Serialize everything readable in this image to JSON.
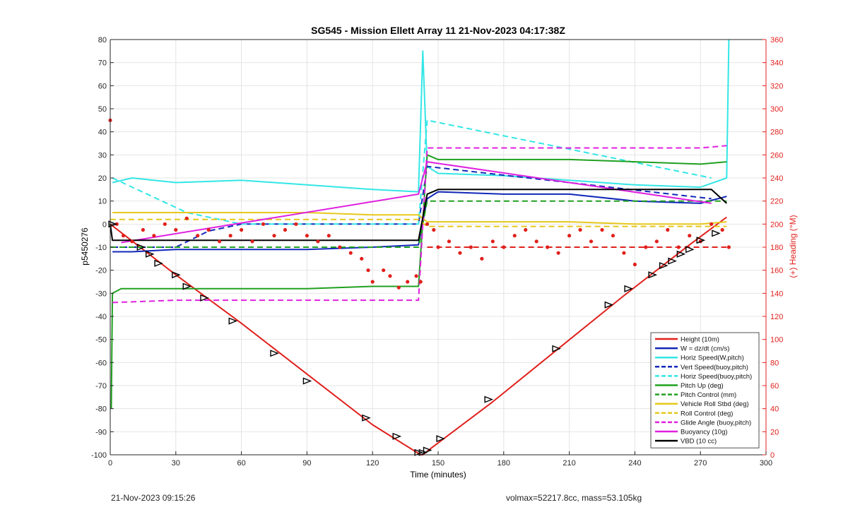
{
  "chart_data": {
    "type": "line",
    "title": "SG545 - Mission Ellett Array 11 21-Nov-2023 04:17:38Z",
    "xlabel": "Time (minutes)",
    "ylabel": "p5450276",
    "y2label": "(+) Heading (°M)",
    "xlim": [
      0,
      300
    ],
    "ylim": [
      -100,
      80
    ],
    "y2lim": [
      0,
      360
    ],
    "xticks": [
      0,
      30,
      60,
      90,
      120,
      150,
      180,
      210,
      240,
      270,
      300
    ],
    "yticks": [
      -100,
      -90,
      -80,
      -70,
      -60,
      -50,
      -40,
      -30,
      -20,
      -10,
      0,
      10,
      20,
      30,
      40,
      50,
      60,
      70,
      80
    ],
    "y2ticks": [
      0,
      20,
      40,
      60,
      80,
      100,
      120,
      140,
      160,
      180,
      200,
      220,
      240,
      260,
      280,
      300,
      320,
      340,
      360
    ],
    "grid": true,
    "legend_position": "bottom-right",
    "colors": {
      "red": "#e0201c",
      "blue": "#1228b8",
      "cyan": "#33e6e6",
      "green": "#20a020",
      "yellow": "#e6c81e",
      "magenta": "#e020e0",
      "black": "#000000",
      "axis_right": "#e0201c"
    },
    "series": [
      {
        "name": "Height (10m)",
        "color": "#e0201c",
        "style": "solid",
        "x": [
          0,
          30,
          60,
          90,
          120,
          142,
          143,
          147,
          175,
          205,
          235,
          265,
          282
        ],
        "y": [
          0,
          -22,
          -43,
          -65,
          -87,
          -100,
          -100,
          -97,
          -77,
          -54,
          -31,
          -9,
          3
        ]
      },
      {
        "name": "W = dz/dt (cm/s)",
        "color": "#1228b8",
        "style": "solid",
        "x": [
          1,
          10,
          30,
          60,
          90,
          120,
          141,
          145,
          150,
          180,
          210,
          240,
          270,
          282
        ],
        "y": [
          -12,
          -12,
          -11,
          -11,
          -11,
          -10,
          -9,
          11,
          14,
          13,
          13,
          10,
          9,
          12
        ]
      },
      {
        "name": "Horiz Speed(W,pitch)",
        "color": "#33e6e6",
        "style": "solid",
        "x": [
          1,
          10,
          30,
          60,
          90,
          120,
          141,
          143,
          145,
          150,
          180,
          210,
          240,
          270,
          282,
          283
        ],
        "y": [
          18,
          20,
          18,
          19,
          17,
          15,
          14,
          75,
          25,
          22,
          21,
          19,
          17,
          16,
          20,
          80
        ]
      },
      {
        "name": "Vert Speed(buoy,pitch)",
        "color": "#1228b8",
        "style": "dashed",
        "x": [
          1,
          30,
          45,
          60,
          141,
          145,
          275
        ],
        "y": [
          -10,
          -10,
          -3,
          0,
          0,
          25,
          11
        ]
      },
      {
        "name": "Horiz Speed(buoy,pitch)",
        "color": "#33e6e6",
        "style": "dashed",
        "x": [
          1,
          35,
          60,
          141,
          145,
          275
        ],
        "y": [
          20,
          5,
          0,
          0,
          45,
          20
        ]
      },
      {
        "name": "Pitch Up (deg)",
        "color": "#20a020",
        "style": "solid",
        "x": [
          0.5,
          1,
          5,
          30,
          60,
          90,
          120,
          141,
          145,
          150,
          180,
          210,
          240,
          270,
          282
        ],
        "y": [
          -80,
          -30,
          -28,
          -28,
          -28,
          -28,
          -27,
          -27,
          30,
          28,
          28,
          28,
          27,
          26,
          27
        ]
      },
      {
        "name": "Pitch Control (mm)",
        "color": "#20a020",
        "style": "dashed",
        "x": [
          0,
          141,
          145,
          282
        ],
        "y": [
          -10,
          -10,
          10,
          10
        ]
      },
      {
        "name": "Vehicle Roll Stbd (deg)",
        "color": "#e6c81e",
        "style": "solid",
        "x": [
          1,
          30,
          60,
          90,
          120,
          141,
          145,
          180,
          210,
          240,
          270,
          282
        ],
        "y": [
          5,
          5,
          5,
          5,
          4,
          4,
          1,
          1,
          1,
          0,
          0,
          1
        ]
      },
      {
        "name": "Roll Control (deg)",
        "color": "#e6c81e",
        "style": "dashed",
        "x": [
          0,
          141,
          145,
          282
        ],
        "y": [
          2,
          2,
          -1,
          -1
        ]
      },
      {
        "name": "Glide Angle (buoy,pitch)",
        "color": "#e020e0",
        "style": "dashed",
        "x": [
          1,
          30,
          60,
          90,
          120,
          141,
          145,
          180,
          210,
          240,
          270,
          282
        ],
        "y": [
          -34,
          -33,
          -33,
          -33,
          -33,
          -33,
          33,
          33,
          33,
          33,
          33,
          34
        ]
      },
      {
        "name": "Buoyancy (10g)",
        "color": "#e020e0",
        "style": "solid",
        "x": [
          5,
          141,
          145,
          275
        ],
        "y": [
          -8,
          13,
          27,
          9
        ]
      },
      {
        "name": "VBD (10 cc)",
        "color": "#000000",
        "style": "solid",
        "x": [
          0,
          1,
          5,
          141,
          145,
          150,
          275,
          282
        ],
        "y": [
          0,
          -7,
          -7,
          -7,
          13,
          15,
          15,
          9
        ]
      }
    ],
    "heading_series": {
      "color": "#e0201c",
      "axis": "right",
      "style": "dots",
      "x": [
        0,
        3,
        6,
        10,
        15,
        20,
        25,
        30,
        35,
        40,
        45,
        50,
        55,
        60,
        65,
        70,
        75,
        80,
        85,
        90,
        95,
        100,
        105,
        110,
        115,
        118,
        120,
        125,
        128,
        132,
        136,
        140,
        142,
        145,
        148,
        150,
        155,
        160,
        165,
        170,
        175,
        180,
        185,
        190,
        195,
        200,
        205,
        210,
        215,
        220,
        225,
        230,
        235,
        240,
        245,
        250,
        255,
        260,
        265,
        270,
        275,
        280,
        283
      ],
      "y": [
        290,
        200,
        190,
        185,
        195,
        190,
        200,
        195,
        205,
        190,
        195,
        185,
        190,
        195,
        185,
        200,
        190,
        195,
        200,
        190,
        185,
        190,
        180,
        175,
        170,
        160,
        150,
        160,
        155,
        145,
        150,
        155,
        150,
        200,
        195,
        180,
        185,
        175,
        180,
        170,
        185,
        180,
        190,
        195,
        185,
        180,
        175,
        190,
        195,
        185,
        195,
        190,
        175,
        165,
        180,
        185,
        195,
        180,
        190,
        185,
        200,
        195,
        180
      ]
    },
    "heading_reference": {
      "color": "#e0201c",
      "style": "dashed",
      "x": [
        145,
        282
      ],
      "y": [
        180,
        180
      ]
    },
    "markers": {
      "color": "#000000",
      "x": [
        1,
        14,
        18,
        22,
        30,
        35,
        43,
        56,
        75,
        90,
        117,
        131,
        141,
        143,
        145,
        151,
        173,
        204,
        228,
        237,
        248,
        253,
        257,
        261,
        265,
        270,
        277
      ],
      "y": [
        0,
        -10,
        -13,
        -17,
        -22,
        -27,
        -32,
        -42,
        -56,
        -68,
        -84,
        -92,
        -99,
        -99,
        -98,
        -93,
        -76,
        -54,
        -35,
        -28,
        -22,
        -18,
        -16,
        -13,
        -11,
        -7,
        -4
      ]
    }
  },
  "footer": {
    "timestamp": "21-Nov-2023 09:15:26",
    "volmax": "volmax=52217.8cc, mass=53.105kg"
  }
}
